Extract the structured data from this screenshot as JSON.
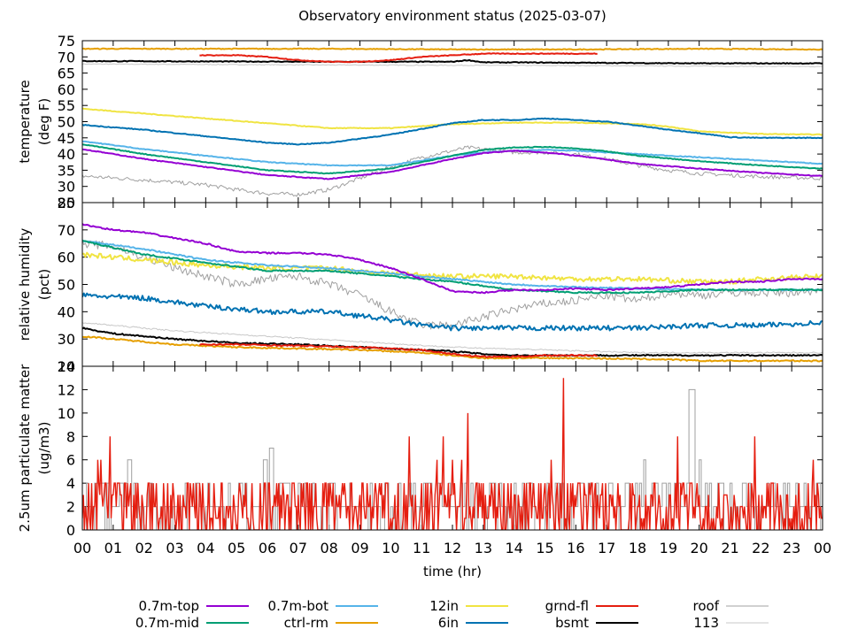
{
  "chart_data": {
    "type": "line",
    "title": "Observatory environment status (2025-03-07)",
    "xlabel": "time (hr)",
    "x_range": [
      0,
      24
    ],
    "x_ticks": [
      "00",
      "01",
      "02",
      "03",
      "04",
      "05",
      "06",
      "07",
      "08",
      "09",
      "10",
      "11",
      "12",
      "13",
      "14",
      "15",
      "16",
      "17",
      "18",
      "19",
      "20",
      "21",
      "22",
      "23",
      "00"
    ],
    "series_style": [
      {
        "name": "0.7m-top",
        "color": "#9400d3"
      },
      {
        "name": "0.7m-mid",
        "color": "#009e73"
      },
      {
        "name": "0.7m-bot",
        "color": "#56b4e9"
      },
      {
        "name": "ctrl-rm",
        "color": "#e69f00"
      },
      {
        "name": "12in",
        "color": "#f0e442"
      },
      {
        "name": "6in",
        "color": "#0072b2"
      },
      {
        "name": "grnd-fl",
        "color": "#e51e10"
      },
      {
        "name": "bsmt",
        "color": "#000000"
      },
      {
        "name": "roof",
        "color": "#a0a0a0"
      },
      {
        "name": "113",
        "color": "#c8c8c8"
      }
    ],
    "panels": [
      {
        "ylabel": [
          "temperature",
          "(deg F)"
        ],
        "ylim": [
          25,
          75
        ],
        "yticks": [
          25,
          30,
          35,
          40,
          45,
          50,
          55,
          60,
          65,
          70,
          75
        ],
        "series": [
          {
            "name": "0.7m-top",
            "x": [
              0,
              2,
              4,
              6,
              8,
              10,
              12,
              13,
              14,
              15,
              16,
              17,
              18,
              20,
              22,
              24
            ],
            "y": [
              41.5,
              38.5,
              36,
              33.5,
              32.3,
              34.5,
              38.5,
              40.3,
              41,
              40.5,
              39.5,
              38.3,
              37,
              35.5,
              34.2,
              33.2
            ]
          },
          {
            "name": "0.7m-mid",
            "x": [
              0,
              2,
              4,
              6,
              8,
              10,
              12,
              13,
              14,
              15,
              16,
              17,
              18,
              20,
              22,
              24
            ],
            "y": [
              43,
              40,
              37.5,
              35,
              34,
              35.5,
              39.5,
              41.3,
              42,
              42.2,
              41.7,
              40.8,
              39.5,
              37.8,
              36.5,
              35.5
            ]
          },
          {
            "name": "0.7m-bot",
            "x": [
              0,
              2,
              4,
              6,
              8,
              10,
              12,
              13,
              14,
              15,
              16,
              17,
              18,
              20,
              22,
              24
            ],
            "y": [
              44,
              41.5,
              39.5,
              37.5,
              36.5,
              36.5,
              39.5,
              40.5,
              41,
              41.3,
              41,
              40.5,
              40,
              39,
              38,
              37
            ]
          },
          {
            "name": "ctrl-rm",
            "x": [
              0,
              4,
              8,
              12,
              16,
              20,
              24
            ],
            "y": [
              72.5,
              72.5,
              72.5,
              72.3,
              72.3,
              72.5,
              72.3
            ]
          },
          {
            "name": "12in",
            "x": [
              0,
              2,
              4,
              6,
              8,
              10,
              12,
              14,
              16,
              18,
              19,
              20,
              22,
              24
            ],
            "y": [
              54,
              52.5,
              51,
              49.5,
              48,
              48,
              49.2,
              49.7,
              49.7,
              49.3,
              48.5,
              47,
              46.2,
              46
            ]
          },
          {
            "name": "6in",
            "x": [
              0,
              2,
              4,
              6,
              7,
              8,
              10,
              12,
              13,
              14,
              15,
              16,
              17,
              18,
              19,
              20,
              21,
              22,
              24
            ],
            "y": [
              49,
              47.5,
              45.5,
              43.5,
              43,
              43.5,
              46,
              49.5,
              50.5,
              50.5,
              51,
              50.5,
              50,
              48.8,
              47.5,
              46.5,
              45.2,
              45,
              45
            ]
          },
          {
            "name": "grnd-fl",
            "x": [
              3.8,
              5,
              6,
              7,
              8,
              9,
              10,
              11,
              12,
              13,
              14,
              15,
              16,
              16.7
            ],
            "y": [
              70.5,
              70.5,
              70,
              69,
              68.5,
              68.5,
              69,
              70,
              70.5,
              71,
              71,
              71,
              71,
              71
            ]
          },
          {
            "name": "bsmt",
            "x": [
              0,
              4,
              8,
              12,
              12.5,
              13,
              14,
              16,
              20,
              24
            ],
            "y": [
              68.7,
              68.6,
              68.5,
              68.5,
              69,
              68.3,
              68.3,
              68.2,
              68,
              68
            ]
          },
          {
            "name": "roof",
            "x": [
              0,
              2,
              4,
              5,
              6,
              7,
              8,
              9,
              10,
              11,
              12,
              12.5,
              13,
              14,
              15,
              16,
              17,
              18,
              19,
              20,
              22,
              24
            ],
            "y": [
              33.2,
              32,
              30.5,
              29,
              27.8,
              27.5,
              29,
              32.5,
              36,
              39,
              41,
              42,
              41.5,
              40.5,
              40.5,
              40,
              38.5,
              36.5,
              35,
              34,
              33,
              32.5
            ]
          },
          {
            "name": "113",
            "x": [
              0,
              8,
              16,
              24
            ],
            "y": [
              67.8,
              67.5,
              67.3,
              67
            ]
          }
        ]
      },
      {
        "ylabel": [
          "relative humidity",
          "(pct)"
        ],
        "ylim": [
          20,
          80
        ],
        "yticks": [
          20,
          30,
          40,
          50,
          60,
          70,
          80
        ],
        "series": [
          {
            "name": "0.7m-top",
            "x": [
              0,
              1,
              2,
              3,
              4,
              5,
              6,
              7,
              8,
              9,
              10,
              11,
              12,
              13,
              14,
              15,
              16,
              17,
              18,
              19,
              20,
              21,
              22,
              23,
              24
            ],
            "y": [
              72,
              70,
              69,
              67,
              65,
              62,
              61.5,
              61.5,
              61,
              59,
              56,
              52,
              47.5,
              47,
              48,
              48,
              48.5,
              48,
              48.5,
              49,
              50,
              51,
              51,
              52,
              52
            ]
          },
          {
            "name": "0.7m-mid",
            "x": [
              0,
              2,
              4,
              6,
              8,
              10,
              12,
              14,
              16,
              18,
              20,
              22,
              24
            ],
            "y": [
              66,
              61,
              58,
              55,
              55,
              53,
              51,
              48,
              47,
              47,
              48,
              48,
              48
            ]
          },
          {
            "name": "0.7m-bot",
            "x": [
              0,
              2,
              4,
              6,
              8,
              10,
              12,
              14,
              16,
              18,
              20,
              22,
              24
            ],
            "y": [
              66,
              63,
              59,
              57,
              56,
              54,
              52,
              50,
              49,
              48.5,
              48,
              48,
              48
            ]
          },
          {
            "name": "ctrl-rm",
            "x": [
              0,
              1,
              3,
              5,
              7,
              9,
              11,
              12,
              13,
              14,
              16,
              19,
              20,
              22,
              24
            ],
            "y": [
              31,
              30,
              28,
              27,
              26.5,
              26,
              25,
              24,
              23,
              23,
              23,
              22.5,
              22,
              22,
              22
            ]
          },
          {
            "name": "12in",
            "x": [
              0,
              2,
              4,
              6,
              8,
              10,
              12,
              14,
              16,
              18,
              20,
              21,
              22,
              24
            ],
            "y": [
              61,
              59,
              57,
              56,
              56,
              54,
              53,
              53,
              52,
              52,
              51,
              51,
              52,
              53
            ]
          },
          {
            "name": "6in",
            "x": [
              0,
              2,
              4,
              6,
              8,
              10,
              11,
              12,
              14,
              16,
              18,
              20,
              21,
              22,
              24
            ],
            "y": [
              46,
              45,
              42,
              40,
              40,
              37,
              35,
              34,
              34,
              34,
              34,
              35,
              35,
              35,
              36
            ]
          },
          {
            "name": "grnd-fl",
            "x": [
              3.8,
              5,
              7,
              9,
              11,
              12,
              13,
              14,
              15,
              16,
              16.7
            ],
            "y": [
              28,
              28,
              27.5,
              27,
              26,
              24.5,
              23.5,
              23.5,
              24,
              24,
              24
            ]
          },
          {
            "name": "bsmt",
            "x": [
              0,
              1,
              3,
              5,
              7,
              9,
              11,
              12,
              13,
              14,
              16,
              18,
              20,
              22,
              24
            ],
            "y": [
              34,
              32,
              30,
              28.5,
              28,
              27,
              26,
              25.5,
              24.5,
              24,
              24,
              24,
              24,
              24,
              24
            ]
          },
          {
            "name": "roof",
            "x": [
              0,
              1,
              2,
              3,
              4,
              5,
              6,
              7,
              8,
              9,
              10,
              11,
              12,
              13,
              14,
              15,
              16,
              17,
              18,
              19,
              20,
              21,
              22,
              23,
              24
            ],
            "y": [
              65,
              64,
              60,
              56,
              53,
              50,
              52,
              53,
              50,
              46,
              40,
              35,
              35,
              38,
              41,
              43,
              44,
              46,
              44,
              47,
              46,
              47,
              47,
              47,
              48
            ]
          },
          {
            "name": "113",
            "x": [
              0,
              3,
              6,
              9,
              12,
              15,
              18,
              21,
              24
            ],
            "y": [
              36,
              33,
              31,
              29,
              27,
              26,
              25,
              25,
              25
            ]
          }
        ]
      },
      {
        "ylabel": [
          "2.5um particulate matter",
          "(ug/m3)"
        ],
        "ylim": [
          0,
          14
        ],
        "yticks": [
          0,
          2,
          4,
          6,
          8,
          10,
          12,
          14
        ],
        "series": [
          {
            "name": "grnd-fl",
            "style": "noisy_pm",
            "base_max": 4,
            "spikes": [
              [
                0.2,
                4
              ],
              [
                0.5,
                6
              ],
              [
                0.6,
                6
              ],
              [
                0.9,
                8
              ],
              [
                1.2,
                4
              ],
              [
                3.4,
                4
              ],
              [
                4.1,
                4
              ],
              [
                5.5,
                4
              ],
              [
                6.3,
                4
              ],
              [
                7.9,
                4
              ],
              [
                8.5,
                4
              ],
              [
                10.6,
                8
              ],
              [
                11.5,
                6
              ],
              [
                11.7,
                8
              ],
              [
                12.0,
                6
              ],
              [
                12.3,
                6
              ],
              [
                12.5,
                10
              ],
              [
                13.0,
                4
              ],
              [
                14.4,
                4
              ],
              [
                15.0,
                4
              ],
              [
                15.2,
                6
              ],
              [
                15.6,
                13
              ],
              [
                15.9,
                4
              ],
              [
                16.5,
                4
              ],
              [
                19.3,
                8
              ],
              [
                19.5,
                4
              ],
              [
                21.8,
                8
              ],
              [
                23.7,
                6
              ]
            ]
          },
          {
            "name": "roof",
            "style": "step_pm",
            "steps": [
              [
                0.5,
                4
              ],
              [
                1.5,
                6
              ],
              [
                1.7,
                4
              ],
              [
                2.0,
                2
              ],
              [
                5.9,
                6
              ],
              [
                6.1,
                7
              ],
              [
                6.5,
                4
              ],
              [
                9.8,
                4
              ],
              [
                10.2,
                2
              ],
              [
                16.2,
                4
              ],
              [
                16.8,
                2
              ],
              [
                18.2,
                6
              ],
              [
                18.5,
                4
              ],
              [
                19.7,
                12
              ],
              [
                19.8,
                12
              ],
              [
                20.0,
                6
              ],
              [
                20.7,
                4
              ],
              [
                21.4,
                4
              ],
              [
                21.7,
                2
              ],
              [
                22.2,
                4
              ],
              [
                22.5,
                2
              ]
            ]
          }
        ]
      }
    ]
  }
}
